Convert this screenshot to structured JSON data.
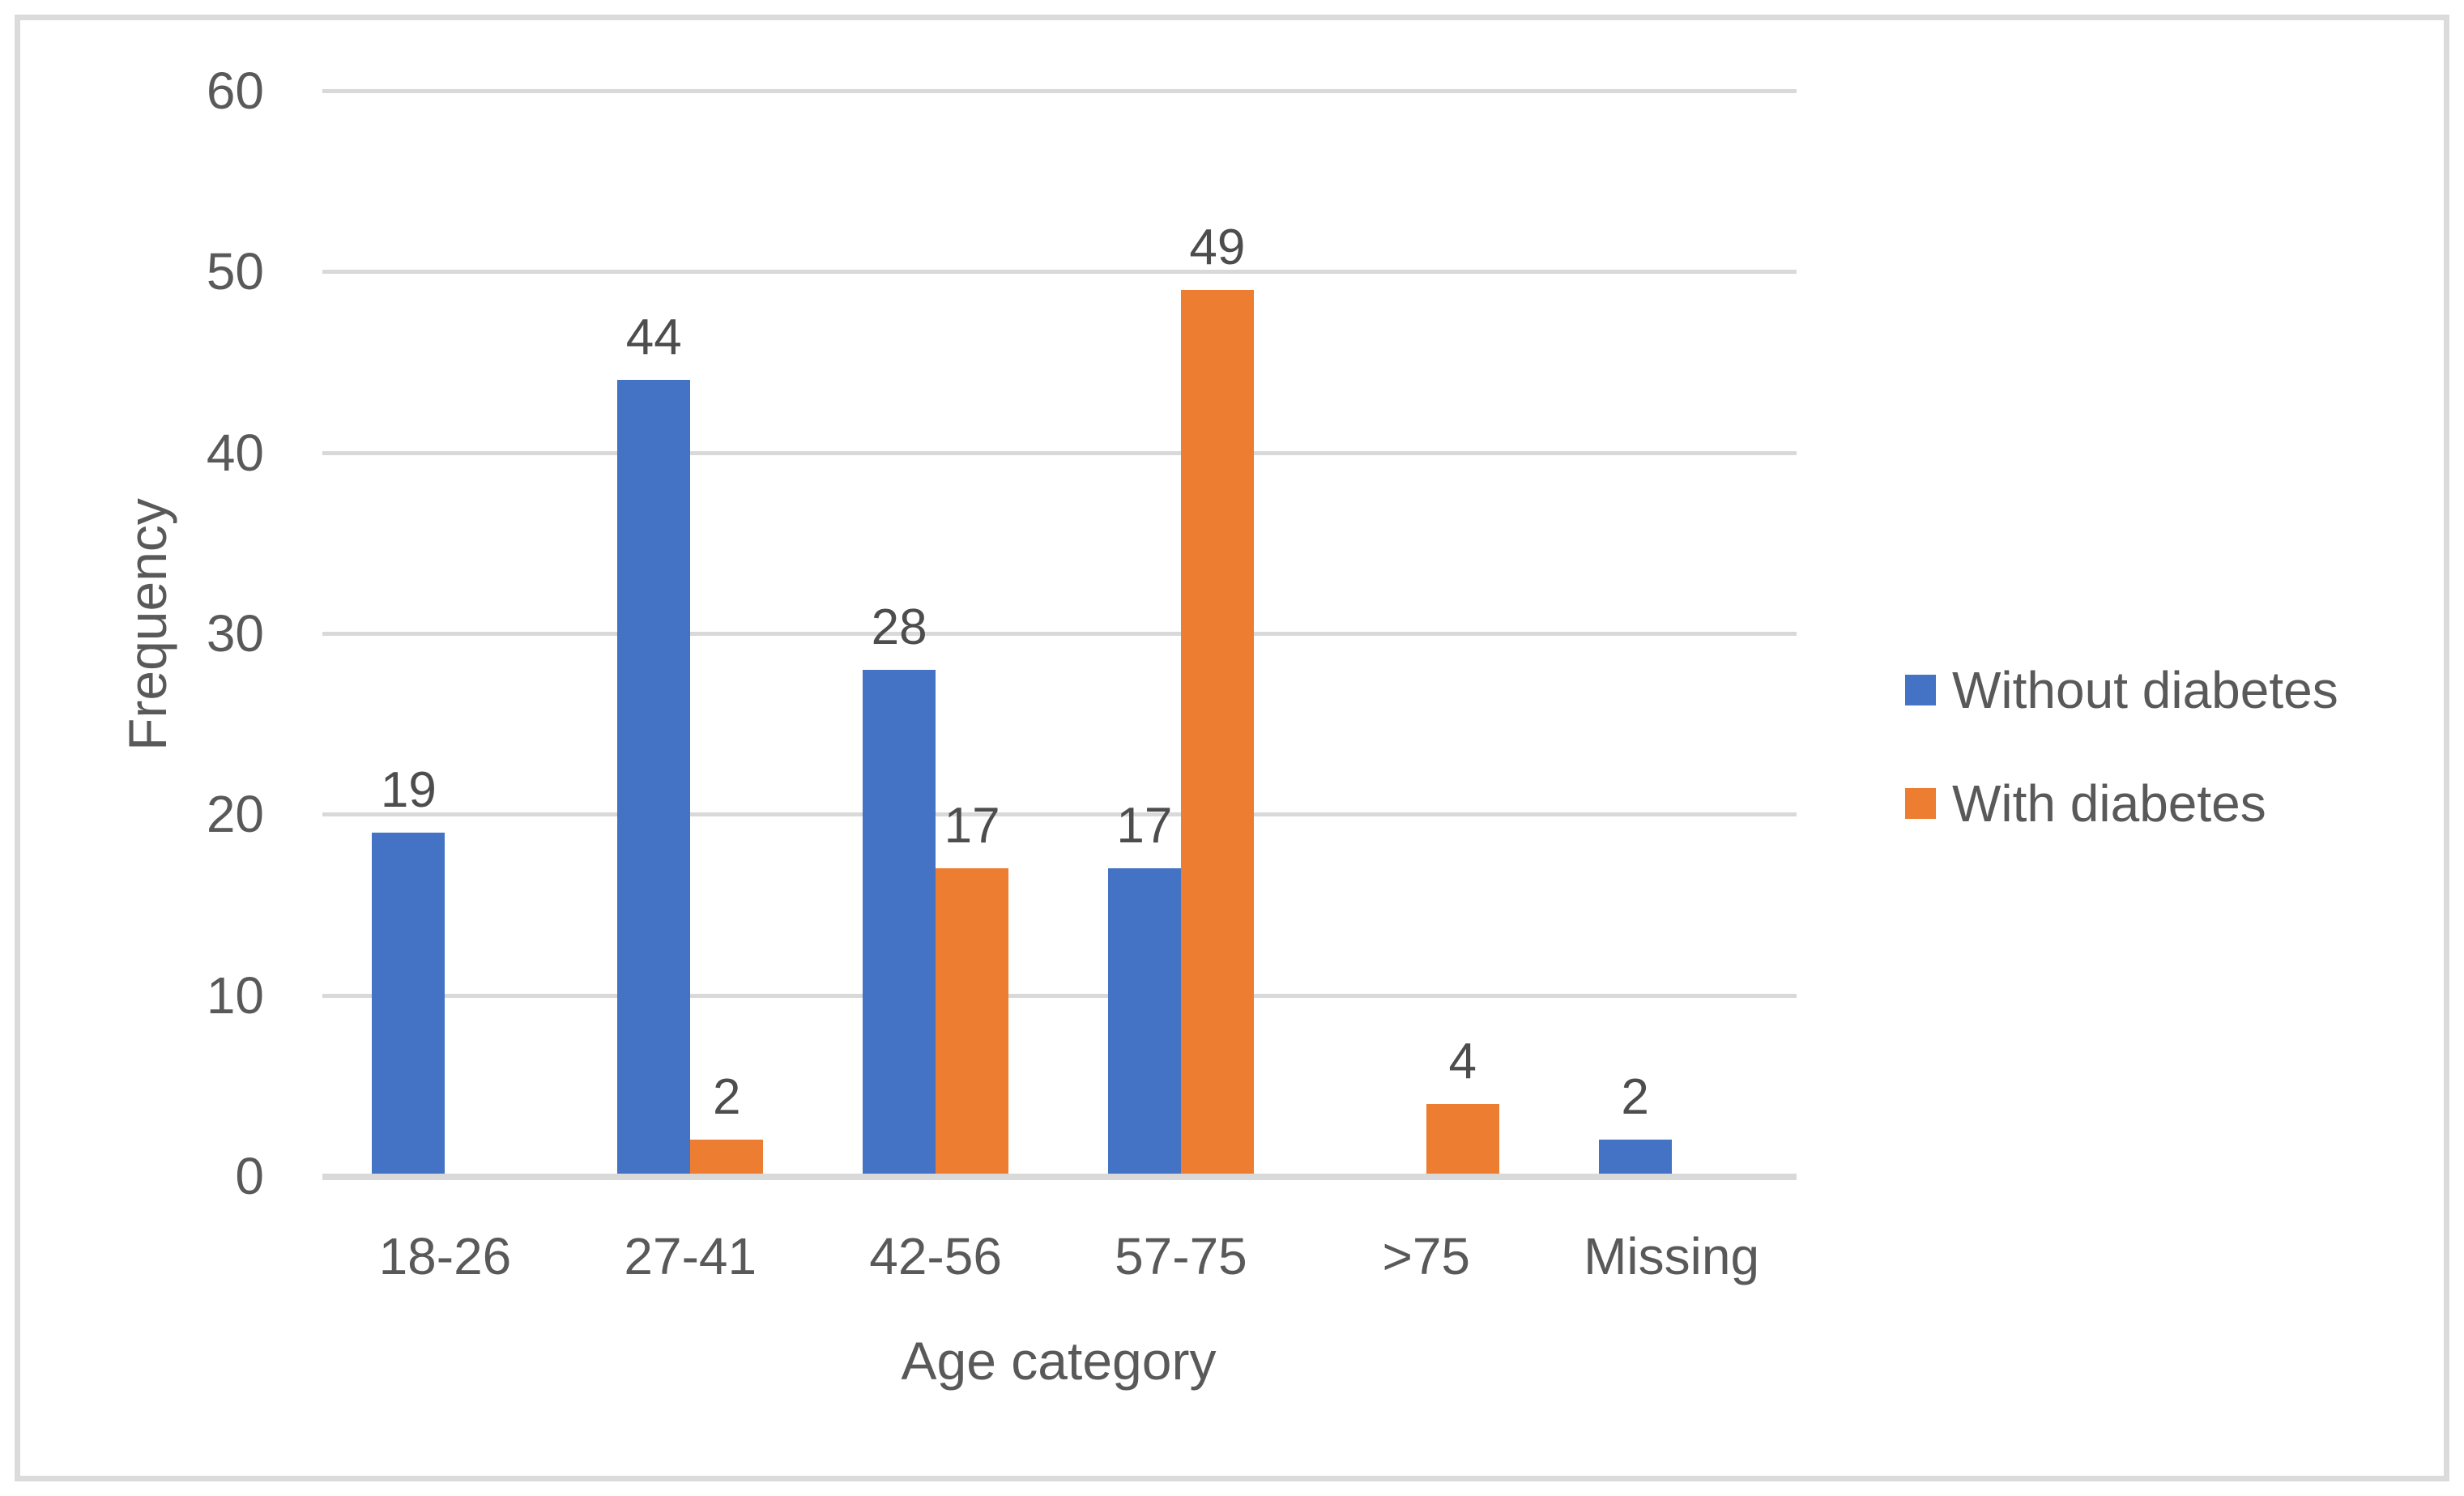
{
  "chart_data": {
    "type": "bar",
    "title": "",
    "categories": [
      "18-26",
      "27-41",
      "42-56",
      "57-75",
      ">75",
      "Missing"
    ],
    "series": [
      {
        "name": "Without diabetes",
        "color": "#4472C4",
        "values": [
          19,
          44,
          28,
          17,
          0,
          2
        ]
      },
      {
        "name": "With diabetes",
        "color": "#ED7D31",
        "values": [
          0,
          2,
          17,
          49,
          4,
          0
        ]
      }
    ],
    "xlabel": "Age category",
    "ylabel": "Frequency",
    "ylim": [
      0,
      60
    ],
    "ytick_step": 10,
    "yticks": [
      0,
      10,
      20,
      30,
      40,
      50,
      60
    ],
    "grid": true,
    "data_labels": true,
    "legend_position": "right",
    "visible_data_labels": [
      "19",
      "44",
      "2",
      "28",
      "17",
      "17",
      "49",
      "4",
      "2"
    ]
  },
  "colors": {
    "background": "#FFFFFF",
    "frame_border": "#DBDBDB",
    "gridline": "#D9D9D9",
    "axis_line": "#D9D9D9",
    "axis_text": "#595959",
    "data_label_text": "#4D4D4D",
    "series_blue": "#4472C4",
    "series_orange": "#ED7D31"
  }
}
